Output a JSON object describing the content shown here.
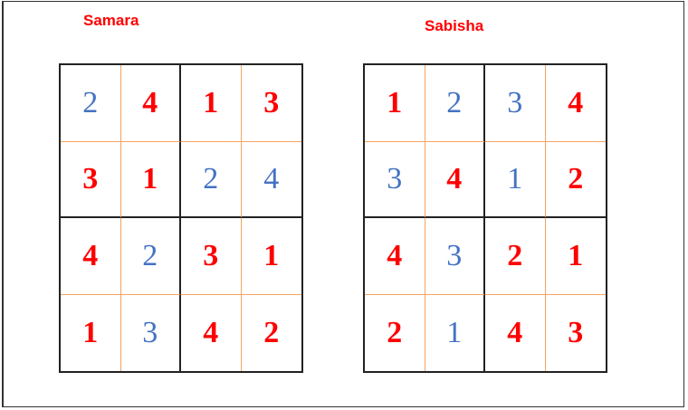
{
  "colors": {
    "given": "#4472c4",
    "filled": "#ff0000",
    "inner_lines": "#f4a460",
    "box_lines": "#222222"
  },
  "puzzles": [
    {
      "name": "Samara",
      "cells": [
        [
          {
            "v": "2",
            "given": true
          },
          {
            "v": "4",
            "given": false
          },
          {
            "v": "1",
            "given": false
          },
          {
            "v": "3",
            "given": false
          }
        ],
        [
          {
            "v": "3",
            "given": false
          },
          {
            "v": "1",
            "given": false
          },
          {
            "v": "2",
            "given": true
          },
          {
            "v": "4",
            "given": true
          }
        ],
        [
          {
            "v": "4",
            "given": false
          },
          {
            "v": "2",
            "given": true
          },
          {
            "v": "3",
            "given": false
          },
          {
            "v": "1",
            "given": false
          }
        ],
        [
          {
            "v": "1",
            "given": false
          },
          {
            "v": "3",
            "given": true
          },
          {
            "v": "4",
            "given": false
          },
          {
            "v": "2",
            "given": false
          }
        ]
      ]
    },
    {
      "name": "Sabisha",
      "cells": [
        [
          {
            "v": "1",
            "given": false
          },
          {
            "v": "2",
            "given": true
          },
          {
            "v": "3",
            "given": true
          },
          {
            "v": "4",
            "given": false
          }
        ],
        [
          {
            "v": "3",
            "given": true
          },
          {
            "v": "4",
            "given": false
          },
          {
            "v": "1",
            "given": true
          },
          {
            "v": "2",
            "given": false
          }
        ],
        [
          {
            "v": "4",
            "given": false
          },
          {
            "v": "3",
            "given": true
          },
          {
            "v": "2",
            "given": false
          },
          {
            "v": "1",
            "given": false
          }
        ],
        [
          {
            "v": "2",
            "given": false
          },
          {
            "v": "1",
            "given": true
          },
          {
            "v": "4",
            "given": false
          },
          {
            "v": "3",
            "given": false
          }
        ]
      ]
    }
  ]
}
